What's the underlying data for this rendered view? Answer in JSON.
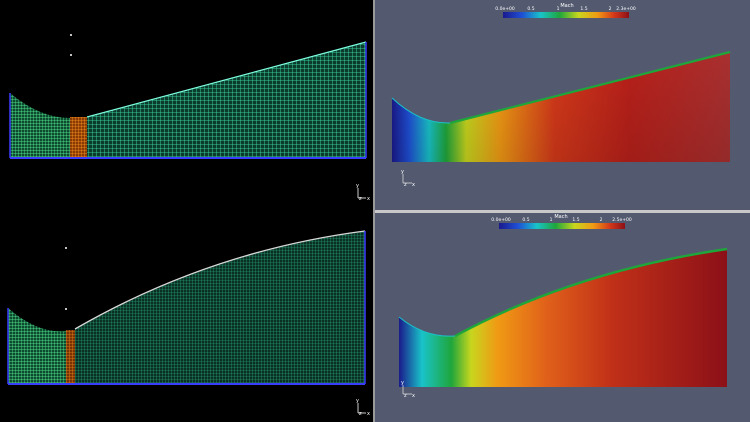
{
  "views": {
    "top_right": {
      "colorbar": {
        "title": "Mach",
        "ticks": [
          "0.0e+00",
          "0.5",
          "1",
          "1.5",
          "2",
          "2.3e+00"
        ],
        "colors": [
          "#1a1a8c",
          "#1f4fd6",
          "#19c3c9",
          "#1fa63b",
          "#c8d61e",
          "#f09a14",
          "#d4391a",
          "#8c1018"
        ]
      },
      "axes": {
        "x": "x",
        "y": "y",
        "z": "z"
      }
    },
    "bottom_right": {
      "colorbar": {
        "title": "Mach",
        "ticks": [
          "0.0e+00",
          "0.5",
          "1",
          "1.5",
          "2",
          "2.5e+00"
        ],
        "colors": [
          "#1a1a8c",
          "#1f4fd6",
          "#19c3c9",
          "#1fa63b",
          "#c8d61e",
          "#f09a14",
          "#d4391a",
          "#8c1018"
        ]
      },
      "axes": {
        "x": "x",
        "y": "y",
        "z": "z"
      }
    },
    "top_left": {
      "axes": {
        "x": "x",
        "y": "y",
        "z": "z"
      }
    },
    "bottom_left": {
      "axes": {
        "x": "x",
        "y": "y",
        "z": "z"
      }
    }
  }
}
